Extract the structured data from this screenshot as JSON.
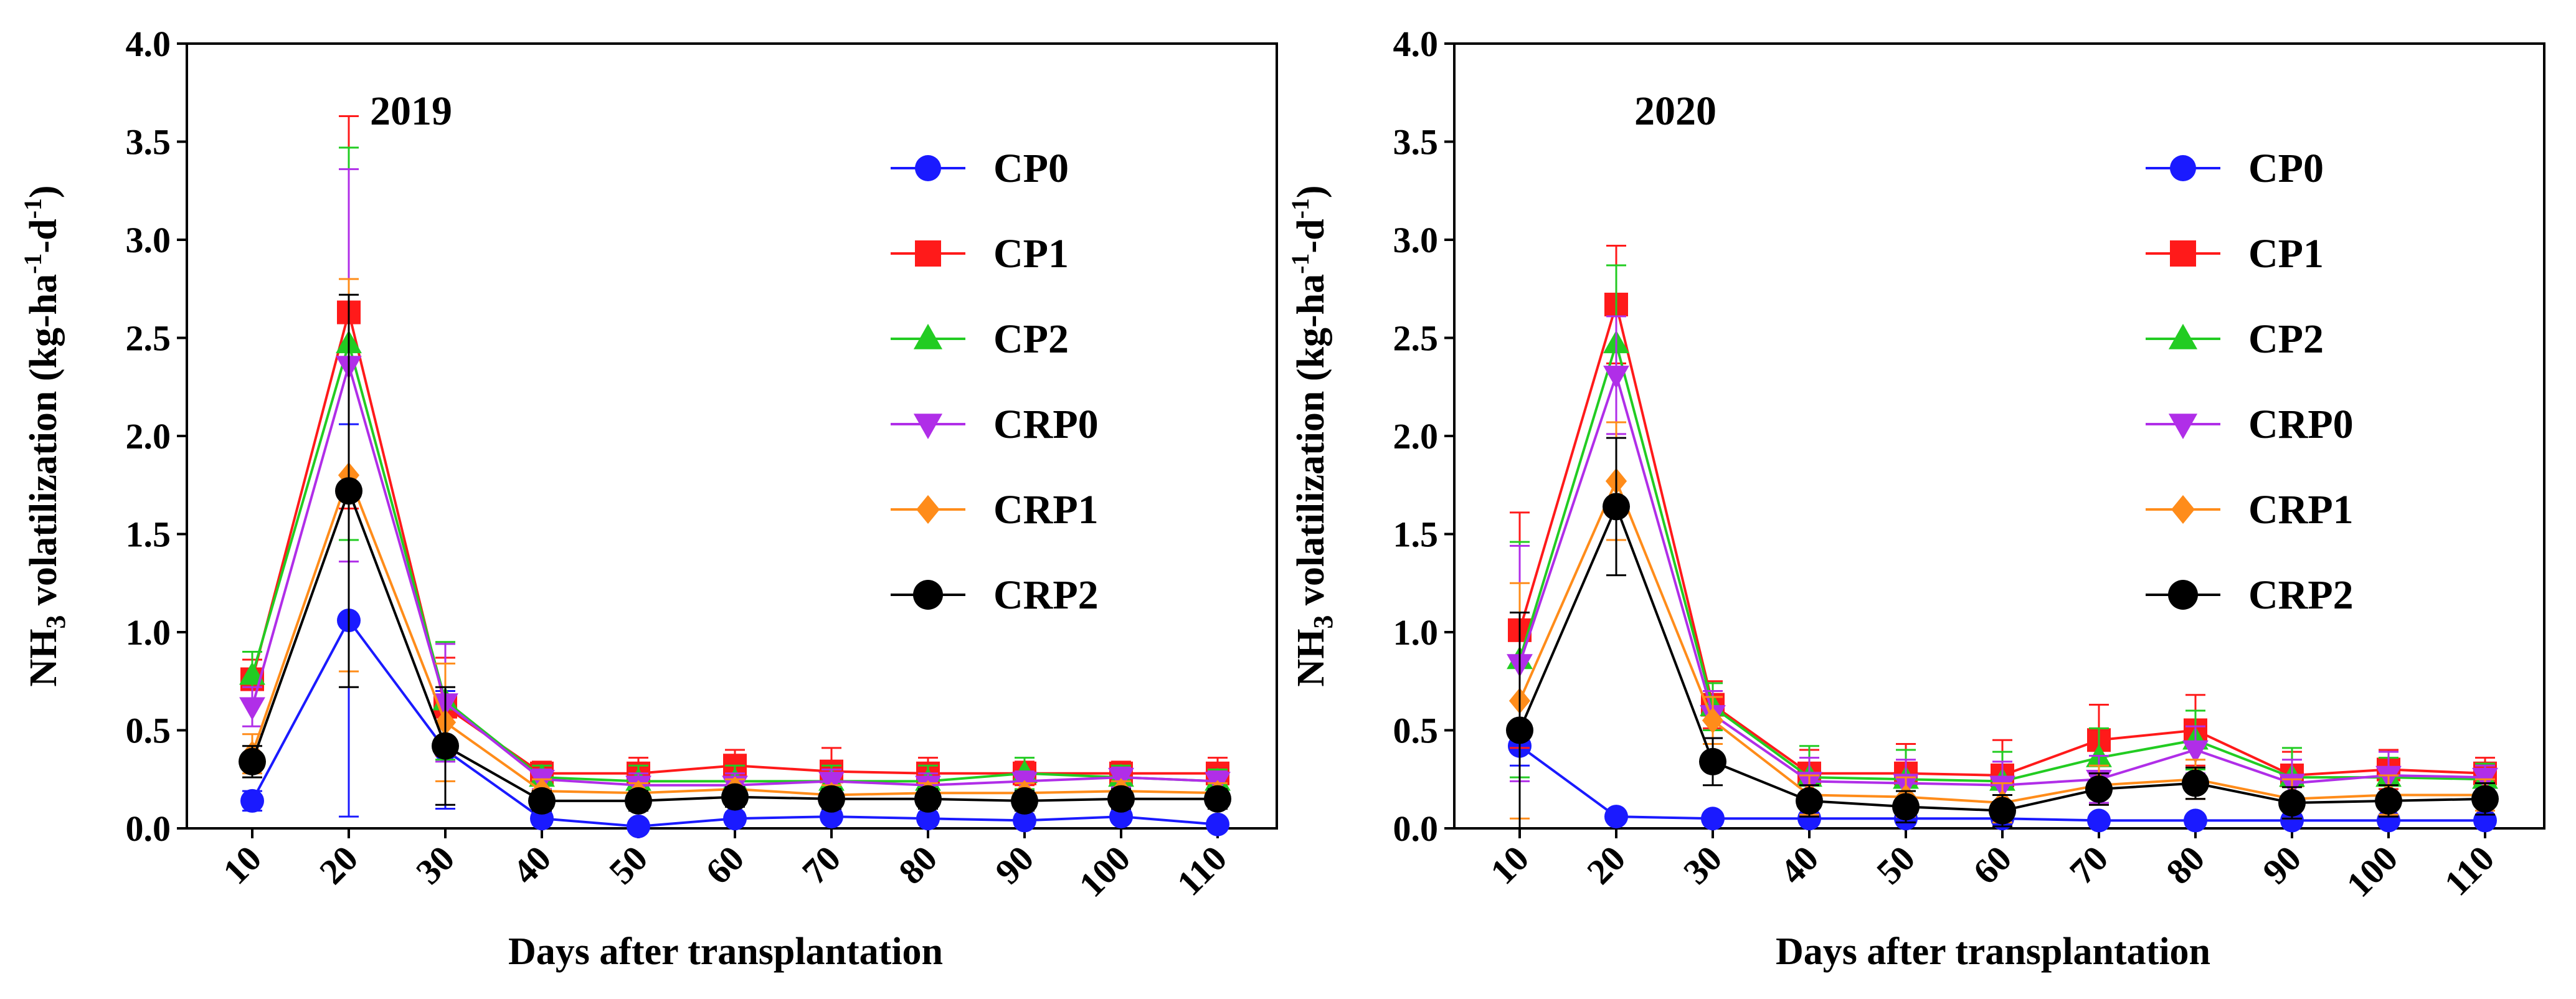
{
  "chart_data": [
    {
      "type": "line",
      "panel_label": "2019",
      "xlabel": "Days after transplantation",
      "ylabel": {
        "part1": "NH",
        "sub": "3",
        "part2": " volatilization (kg-ha",
        "sup1": "-1",
        "part3": "-d",
        "sup2": "-1",
        "part4": ")"
      },
      "ylim": [
        0,
        4.0
      ],
      "yticks": [
        "0.0",
        "0.5",
        "1.0",
        "1.5",
        "2.0",
        "2.5",
        "3.0",
        "3.5",
        "4.0"
      ],
      "x": [
        10,
        20,
        30,
        40,
        50,
        60,
        70,
        80,
        90,
        100,
        110
      ],
      "xtick_labels": [
        "10",
        "20",
        "30",
        "40",
        "50",
        "60",
        "70",
        "80",
        "90",
        "100",
        "110"
      ],
      "legend_position": "right",
      "series": [
        {
          "name": "CP0",
          "color": "#1a1aff",
          "marker": "circle",
          "values": [
            0.14,
            1.06,
            0.4,
            0.05,
            0.01,
            0.05,
            0.06,
            0.05,
            0.04,
            0.06,
            0.02
          ],
          "errors": [
            0.05,
            1.0,
            0.3,
            0.03,
            0.02,
            0.03,
            0.03,
            0.03,
            0.03,
            0.03,
            0.02
          ]
        },
        {
          "name": "CP1",
          "color": "#ff1a1a",
          "marker": "square",
          "values": [
            0.76,
            2.63,
            0.62,
            0.28,
            0.28,
            0.32,
            0.29,
            0.28,
            0.28,
            0.28,
            0.28
          ],
          "errors": [
            0.1,
            1.0,
            0.25,
            0.06,
            0.08,
            0.08,
            0.12,
            0.08,
            0.06,
            0.06,
            0.08
          ]
        },
        {
          "name": "CP2",
          "color": "#22cc22",
          "marker": "triangle-up",
          "values": [
            0.78,
            2.47,
            0.65,
            0.26,
            0.24,
            0.24,
            0.24,
            0.24,
            0.28,
            0.26,
            0.24
          ],
          "errors": [
            0.12,
            1.0,
            0.3,
            0.06,
            0.08,
            0.08,
            0.08,
            0.08,
            0.08,
            0.06,
            0.06
          ]
        },
        {
          "name": "CRP0",
          "color": "#b02ee8",
          "marker": "triangle-down",
          "values": [
            0.62,
            2.36,
            0.64,
            0.25,
            0.22,
            0.22,
            0.24,
            0.22,
            0.24,
            0.26,
            0.24
          ],
          "errors": [
            0.1,
            1.0,
            0.3,
            0.05,
            0.06,
            0.06,
            0.06,
            0.06,
            0.05,
            0.05,
            0.05
          ]
        },
        {
          "name": "CRP1",
          "color": "#ff8c1a",
          "marker": "diamond",
          "values": [
            0.38,
            1.8,
            0.54,
            0.19,
            0.18,
            0.2,
            0.17,
            0.18,
            0.18,
            0.19,
            0.18
          ],
          "errors": [
            0.1,
            1.0,
            0.3,
            0.06,
            0.05,
            0.05,
            0.05,
            0.05,
            0.05,
            0.05,
            0.05
          ]
        },
        {
          "name": "CRP2",
          "color": "#000000",
          "marker": "circle",
          "values": [
            0.34,
            1.72,
            0.42,
            0.14,
            0.14,
            0.16,
            0.15,
            0.15,
            0.14,
            0.15,
            0.15
          ],
          "errors": [
            0.08,
            1.0,
            0.3,
            0.05,
            0.05,
            0.05,
            0.05,
            0.05,
            0.05,
            0.05,
            0.05
          ]
        }
      ]
    },
    {
      "type": "line",
      "panel_label": "2020",
      "xlabel": "Days after transplantation",
      "ylabel": {
        "part1": "NH",
        "sub": "3",
        "part2": " volatilization (kg-ha",
        "sup1": "-1",
        "part3": "-d",
        "sup2": "-1",
        "part4": ")"
      },
      "ylim": [
        0,
        4.0
      ],
      "yticks": [
        "0.0",
        "0.5",
        "1.0",
        "1.5",
        "2.0",
        "2.5",
        "3.0",
        "3.5",
        "4.0"
      ],
      "x": [
        10,
        20,
        30,
        40,
        50,
        60,
        70,
        80,
        90,
        100,
        110
      ],
      "xtick_labels": [
        "10",
        "20",
        "30",
        "40",
        "50",
        "60",
        "70",
        "80",
        "90",
        "100",
        "110"
      ],
      "legend_position": "right",
      "series": [
        {
          "name": "CP0",
          "color": "#1a1aff",
          "marker": "circle",
          "values": [
            0.42,
            0.06,
            0.05,
            0.05,
            0.05,
            0.05,
            0.04,
            0.04,
            0.04,
            0.04,
            0.04
          ],
          "errors": [
            0.1,
            0.02,
            0.02,
            0.02,
            0.02,
            0.02,
            0.02,
            0.02,
            0.02,
            0.02,
            0.02
          ]
        },
        {
          "name": "CP1",
          "color": "#ff1a1a",
          "marker": "square",
          "values": [
            1.01,
            2.67,
            0.63,
            0.28,
            0.28,
            0.27,
            0.45,
            0.5,
            0.27,
            0.3,
            0.28
          ],
          "errors": [
            0.6,
            0.3,
            0.12,
            0.12,
            0.15,
            0.18,
            0.18,
            0.18,
            0.12,
            0.1,
            0.08
          ]
        },
        {
          "name": "CP2",
          "color": "#22cc22",
          "marker": "triangle-up",
          "values": [
            0.86,
            2.47,
            0.62,
            0.26,
            0.25,
            0.24,
            0.36,
            0.45,
            0.26,
            0.26,
            0.25
          ],
          "errors": [
            0.6,
            0.4,
            0.12,
            0.16,
            0.15,
            0.15,
            0.15,
            0.15,
            0.15,
            0.1,
            0.08
          ]
        },
        {
          "name": "CRP0",
          "color": "#b02ee8",
          "marker": "triangle-down",
          "values": [
            0.84,
            2.31,
            0.58,
            0.24,
            0.23,
            0.22,
            0.25,
            0.4,
            0.23,
            0.27,
            0.26
          ],
          "errors": [
            0.6,
            0.3,
            0.12,
            0.12,
            0.12,
            0.12,
            0.12,
            0.12,
            0.12,
            0.12,
            0.06
          ]
        },
        {
          "name": "CRP1",
          "color": "#ff8c1a",
          "marker": "diamond",
          "values": [
            0.65,
            1.77,
            0.55,
            0.17,
            0.16,
            0.13,
            0.22,
            0.25,
            0.15,
            0.17,
            0.17
          ],
          "errors": [
            0.6,
            0.3,
            0.12,
            0.1,
            0.1,
            0.1,
            0.1,
            0.1,
            0.1,
            0.1,
            0.08
          ]
        },
        {
          "name": "CRP2",
          "color": "#000000",
          "marker": "circle",
          "values": [
            0.5,
            1.64,
            0.34,
            0.14,
            0.11,
            0.09,
            0.2,
            0.23,
            0.13,
            0.14,
            0.15
          ],
          "errors": [
            0.6,
            0.35,
            0.12,
            0.08,
            0.08,
            0.08,
            0.08,
            0.08,
            0.08,
            0.08,
            0.08
          ]
        }
      ]
    }
  ]
}
